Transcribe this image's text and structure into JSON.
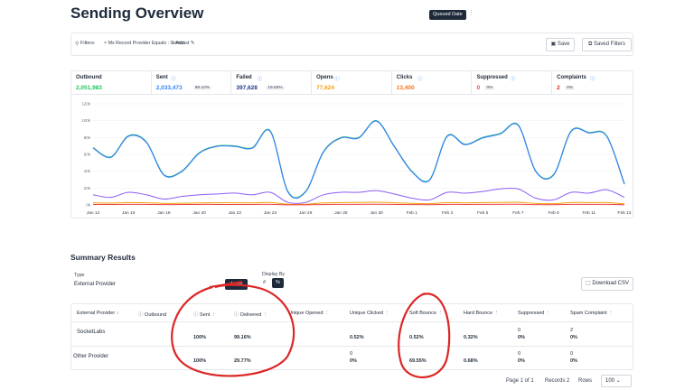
{
  "header": {
    "title": "Sending Overview",
    "queued_label": "Queued Date",
    "more": "⋮"
  },
  "filters": {
    "label": "Filters:",
    "chip": "× Mx Record Provider Equals : Comcast ✎",
    "add": "+ Add",
    "save": "Save",
    "saved_filters": "Saved Filters"
  },
  "stats": [
    {
      "label": "Outbound",
      "value": "2,051,983",
      "pct": "",
      "color": "#22c55e"
    },
    {
      "label": "Sent",
      "value": "2,033,473",
      "pct": "99.10%",
      "color": "#3b82f6"
    },
    {
      "label": "Failed",
      "value": "397,628",
      "pct": "19.55%",
      "color": "#1e3a8a"
    },
    {
      "label": "Opens",
      "value": "77,624",
      "pct": "",
      "color": "#f59e0b"
    },
    {
      "label": "Clicks",
      "value": "13,400",
      "pct": "",
      "color": "#f97316"
    },
    {
      "label": "Suppressed",
      "value": "0",
      "pct": "0%",
      "color": "#ef4444"
    },
    {
      "label": "Complaints",
      "value": "2",
      "pct": "0%",
      "color": "#dc2626"
    }
  ],
  "chart_data": {
    "type": "line",
    "x": [
      "Jan 14",
      "Jan 15",
      "Jan 16",
      "Jan 17",
      "Jan 18",
      "Jan 19",
      "Jan 20",
      "Jan 21",
      "Jan 22",
      "Jan 23",
      "Jan 24",
      "Jan 25",
      "Jan 26",
      "Jan 27",
      "Jan 28",
      "Jan 29",
      "Jan 30",
      "Jan 31",
      "Feb 1",
      "Feb 2",
      "Feb 3",
      "Feb 4",
      "Feb 5",
      "Feb 6",
      "Feb 7",
      "Feb 8",
      "Feb 9",
      "Feb 10",
      "Feb 11",
      "Feb 12",
      "Feb 13"
    ],
    "x_tick_labels": [
      "Jan 14",
      "Jan 16",
      "Jan 18",
      "Jan 20",
      "Jan 22",
      "Jan 24",
      "Jan 26",
      "Jan 28",
      "Jan 30",
      "Feb 1",
      "Feb 3",
      "Feb 5",
      "Feb 7",
      "Feb 9",
      "Feb 11",
      "Feb 13"
    ],
    "y_tick_labels": [
      "0k",
      "20k",
      "40k",
      "60k",
      "80k",
      "100k",
      "120k"
    ],
    "ylim": [
      0,
      120000
    ],
    "grid": true,
    "series": [
      {
        "color": "#22c55e",
        "values": [
          68000,
          57000,
          82000,
          75000,
          36000,
          40000,
          62000,
          70000,
          70000,
          68000,
          88000,
          16000,
          16000,
          63000,
          80000,
          80000,
          100000,
          70000,
          40000,
          30000,
          82000,
          72000,
          80000,
          85000,
          95000,
          40000,
          36000,
          88000,
          86000,
          82000,
          25000
        ]
      },
      {
        "color": "#3b82f6",
        "values": [
          67500,
          56500,
          81500,
          74500,
          35500,
          39500,
          61500,
          69500,
          69500,
          67500,
          87500,
          15500,
          15500,
          62500,
          79500,
          79500,
          99500,
          69500,
          39500,
          29500,
          81500,
          71500,
          79500,
          84500,
          94500,
          39500,
          35500,
          87500,
          85500,
          81500,
          24500
        ]
      },
      {
        "color": "#8b5cf6",
        "values": [
          12000,
          9000,
          15000,
          12000,
          7000,
          10000,
          12000,
          13000,
          14000,
          12000,
          15000,
          3000,
          3000,
          12000,
          15000,
          15000,
          17000,
          13000,
          8000,
          6000,
          15000,
          14000,
          16000,
          19000,
          19000,
          8000,
          6000,
          15000,
          14000,
          18000,
          9000
        ]
      },
      {
        "color": "#f59e0b",
        "values": [
          2500,
          2200,
          2800,
          2600,
          1800,
          2000,
          2400,
          2600,
          2600,
          2500,
          2900,
          800,
          800,
          2400,
          2800,
          3000,
          3200,
          2600,
          1800,
          1500,
          2800,
          2600,
          2800,
          3000,
          3200,
          1800,
          1500,
          2900,
          2800,
          2800,
          1200
        ]
      },
      {
        "color": "#ef4444",
        "values": [
          600,
          500,
          700,
          600,
          400,
          500,
          600,
          600,
          600,
          600,
          700,
          200,
          200,
          600,
          700,
          700,
          800,
          600,
          400,
          300,
          700,
          600,
          700,
          700,
          800,
          400,
          300,
          700,
          700,
          700,
          300
        ]
      }
    ]
  },
  "summary": {
    "title": "Summary Results",
    "type_label": "Type",
    "type_value": "External Provider",
    "apply": "Apply",
    "display_label": "Display By",
    "display_hash": "#",
    "display_pct": "%",
    "download": "Download CSV"
  },
  "table": {
    "headers": [
      "External Provider",
      "Outbound",
      "Sent",
      "Delivered",
      "Unique Opened",
      "Unique Clicked",
      "Soft Bounce",
      "Hard Bounce",
      "Suppressed",
      "Spam Complaint"
    ],
    "rows": [
      {
        "provider": "SocketLabs",
        "sent": "100%",
        "delivered": "99.16%",
        "unique_clicked": "0.52%",
        "soft_bounce": "0.52%",
        "hard_bounce": "0.32%",
        "suppressed_top": "0",
        "suppressed": "0%",
        "spam_top": "2",
        "spam": "0%"
      },
      {
        "provider": "Other Provider",
        "sent": "100%",
        "delivered": "29.77%",
        "unique_clicked_top": "0",
        "unique_clicked": "0%",
        "soft_bounce": "69.55%",
        "hard_bounce": "0.68%",
        "suppressed_top": "0",
        "suppressed": "0%",
        "spam_top": "0",
        "spam": "0%"
      }
    ]
  },
  "pager": {
    "page": "Page 1 of 1",
    "records": "Records 2",
    "rows_label": "Rows",
    "rows_value": "100 ⌄"
  }
}
